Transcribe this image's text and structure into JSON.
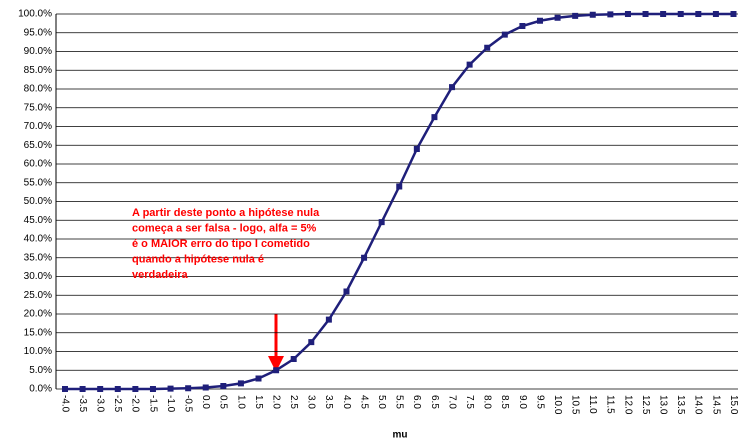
{
  "chart_data": {
    "type": "line",
    "x_label": "mu",
    "categories": [
      "-4.0",
      "-3.5",
      "-3.0",
      "-2.5",
      "-2.0",
      "-1.5",
      "-1.0",
      "-0.5",
      "0.0",
      "0.5",
      "1.0",
      "1.5",
      "2.0",
      "2.5",
      "3.0",
      "3.5",
      "4.0",
      "4.5",
      "5.0",
      "5.5",
      "6.0",
      "6.5",
      "7.0",
      "7.5",
      "8.0",
      "8.5",
      "9.0",
      "9.5",
      "10.0",
      "10.5",
      "11.0",
      "11.5",
      "12.0",
      "12.5",
      "13.0",
      "13.5",
      "14.0",
      "14.5",
      "15.0"
    ],
    "series": [
      {
        "color": "#1f1f7a",
        "values": [
          0,
          0,
          0,
          0,
          0,
          0,
          0.1,
          0.2,
          0.4,
          0.8,
          1.5,
          2.8,
          5,
          8,
          12.5,
          18.5,
          26,
          35,
          44.5,
          54,
          64,
          72.5,
          80.5,
          86.5,
          91,
          94.5,
          96.8,
          98.2,
          99,
          99.5,
          99.8,
          99.9,
          100,
          100,
          100,
          100,
          100,
          100,
          100
        ]
      }
    ],
    "ylim": [
      0,
      100
    ],
    "yticks": [
      {
        "value": 0,
        "label": "0.0%"
      },
      {
        "value": 5,
        "label": "5.0%"
      },
      {
        "value": 10,
        "label": "10.0%"
      },
      {
        "value": 15,
        "label": "15.0%"
      },
      {
        "value": 20,
        "label": "20.0%"
      },
      {
        "value": 25,
        "label": "25.0%"
      },
      {
        "value": 30,
        "label": "30.0%"
      },
      {
        "value": 35,
        "label": "35.0%"
      },
      {
        "value": 40,
        "label": "40.0%"
      },
      {
        "value": 45,
        "label": "45.0%"
      },
      {
        "value": 50,
        "label": "50.0%"
      },
      {
        "value": 55,
        "label": "55.0%"
      },
      {
        "value": 60,
        "label": "60.0%"
      },
      {
        "value": 65,
        "label": "65.0%"
      },
      {
        "value": 70,
        "label": "70.0%"
      },
      {
        "value": 75,
        "label": "75.0%"
      },
      {
        "value": 80,
        "label": "80.0%"
      },
      {
        "value": 85,
        "label": "85.0%"
      },
      {
        "value": 90,
        "label": "90.0%"
      },
      {
        "value": 95,
        "label": "95.0%"
      },
      {
        "value": 100,
        "label": "100.0%"
      }
    ],
    "grid": true,
    "annotation": [
      "A partir deste ponto a hipótese nula",
      "começa a ser falsa - logo, alfa = 5%",
      "é o MAIOR erro do tipo I cometido",
      "quando a hipótese nula é",
      "verdadeira"
    ]
  }
}
